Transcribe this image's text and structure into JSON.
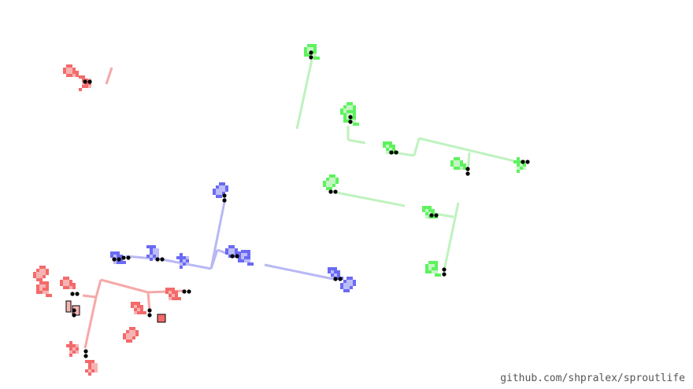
{
  "credit": "github.com/shpralex/sproutlife",
  "colors": {
    "background": "#ffffff",
    "red_cell": "#f46a6a",
    "red_stem": "#f6a8a8",
    "red_seed": "#f7b3b3",
    "blue_cell": "#6a6af4",
    "blue_stem": "#b8b8f4",
    "blue_seed": "#bcbcf6",
    "green_cell": "#5ef25e",
    "green_stem": "#bff2bf",
    "green_seed": "#c4f6c4",
    "marker": "#000000"
  },
  "colonies": [
    {
      "name": "red",
      "organisms": 9,
      "marked_seeds": 3
    },
    {
      "name": "blue",
      "organisms": 8
    },
    {
      "name": "green",
      "organisms": 9
    }
  ]
}
